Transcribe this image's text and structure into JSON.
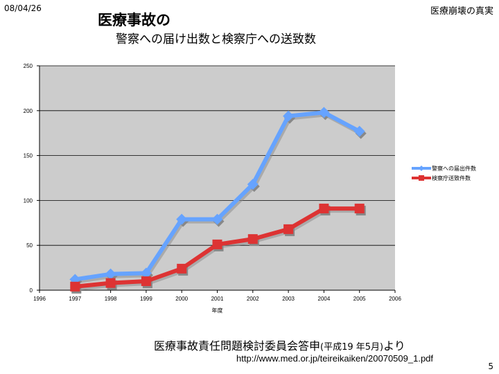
{
  "header": {
    "date": "08/04/26",
    "right_title": "医療崩壊の真実",
    "page_number": "5"
  },
  "slide": {
    "title": "医療事故の",
    "subtitle": "警察への届け出数と検察庁への送致数",
    "source_main": "医療事故責任問題検討委員会答申",
    "source_detail": "(平成19 年5月)",
    "source_suffix": "より",
    "url": "http://www.med.or.jp/teireikaiken/20070509_1.pdf"
  },
  "chart_data": {
    "type": "line",
    "title": "",
    "xlabel": "年度",
    "ylabel": "",
    "xlim": [
      1996,
      2006
    ],
    "ylim": [
      0,
      250
    ],
    "x_ticks": [
      "1996",
      "1997",
      "1998",
      "1999",
      "2000",
      "2001",
      "2002",
      "2003",
      "2004",
      "2005",
      "2006"
    ],
    "y_ticks": [
      "0",
      "50",
      "100",
      "150",
      "200",
      "250"
    ],
    "x": [
      1997,
      1998,
      1999,
      2000,
      2001,
      2002,
      2003,
      2004,
      2005
    ],
    "series": [
      {
        "name": "警察への届出件数",
        "color": "#66a3ff",
        "marker": "diamond",
        "values": [
          12,
          18,
          19,
          79,
          79,
          118,
          194,
          198,
          177
        ]
      },
      {
        "name": "検察庁送致件数",
        "color": "#dd3333",
        "marker": "square",
        "values": [
          4,
          8,
          10,
          24,
          51,
          57,
          68,
          91,
          91
        ]
      }
    ],
    "grid": true,
    "legend_position": "right",
    "plot_background": "#cccccc"
  }
}
